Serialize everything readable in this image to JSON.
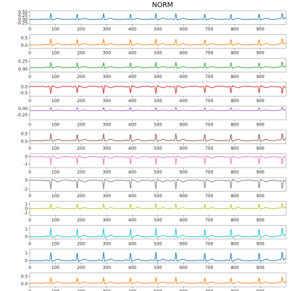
{
  "chart_data": {
    "type": "line",
    "title": "NORM",
    "x_range": [
      0,
      1000
    ],
    "x_ticks": [
      0,
      100,
      200,
      300,
      400,
      500,
      600,
      700,
      800,
      900
    ],
    "beat_positions": [
      82,
      185,
      288,
      393,
      492,
      570,
      683,
      785,
      895,
      985
    ],
    "grid": false,
    "subplots": [
      {
        "color": "#1f77b4",
        "polarity": "up",
        "ylim": [
          -0.35,
          0.6
        ],
        "y_ticks": [
          "0.50",
          "0.25",
          "0.00",
          "-0.25"
        ],
        "baseline": 0.0,
        "peak": 0.4
      },
      {
        "color": "#ff7f0e",
        "polarity": "up",
        "ylim": [
          -0.2,
          0.75
        ],
        "y_ticks": [
          "0.5",
          "0.0"
        ],
        "baseline": 0.05,
        "peak": 0.45
      },
      {
        "color": "#2ca02c",
        "polarity": "up",
        "ylim": [
          -0.1,
          0.35
        ],
        "y_ticks": [
          "0.25",
          "0.00"
        ],
        "baseline": 0.05,
        "peak": 0.22
      },
      {
        "color": "#d62728",
        "polarity": "down",
        "ylim": [
          -0.75,
          0.4
        ],
        "y_ticks": [
          "0.0",
          "-0.5"
        ],
        "baseline": 0.05,
        "peak": -0.55
      },
      {
        "color": "#9467bd",
        "polarity": "up",
        "ylim": [
          -0.45,
          0.1
        ],
        "y_ticks": [
          "0.00",
          "-0.25"
        ],
        "baseline": -0.08,
        "peak": 0.05
      },
      {
        "color": "#8c564b",
        "polarity": "up",
        "ylim": [
          -0.15,
          0.75
        ],
        "y_ticks": [
          "0.5",
          "0.0"
        ],
        "baseline": 0.05,
        "peak": 0.5
      },
      {
        "color": "#e377c2",
        "polarity": "down",
        "ylim": [
          -1.5,
          0.4
        ],
        "y_ticks": [
          "0",
          "-1"
        ],
        "baseline": 0.0,
        "peak": -1.1
      },
      {
        "color": "#7f7f7f",
        "polarity": "down",
        "ylim": [
          -2.5,
          0.6
        ],
        "y_ticks": [
          "0",
          "-2"
        ],
        "baseline": 0.0,
        "peak": -2.0
      },
      {
        "color": "#bcbd22",
        "polarity": "up",
        "ylim": [
          -1.5,
          1.6
        ],
        "y_ticks": [
          "1",
          "0",
          "-1"
        ],
        "baseline": 0.0,
        "peak": 1.1
      },
      {
        "color": "#17becf",
        "polarity": "up",
        "ylim": [
          -0.3,
          1.5
        ],
        "y_ticks": [
          "1",
          "0"
        ],
        "baseline": 0.0,
        "peak": 1.1
      },
      {
        "color": "#1f77b4",
        "polarity": "up",
        "ylim": [
          -0.3,
          1.5
        ],
        "y_ticks": [
          "1",
          "0"
        ],
        "baseline": 0.0,
        "peak": 1.1
      },
      {
        "color": "#ff7f0e",
        "polarity": "up",
        "ylim": [
          -0.2,
          0.75
        ],
        "y_ticks": [
          "0.5",
          "0.0"
        ],
        "baseline": 0.05,
        "peak": 0.45
      }
    ]
  }
}
